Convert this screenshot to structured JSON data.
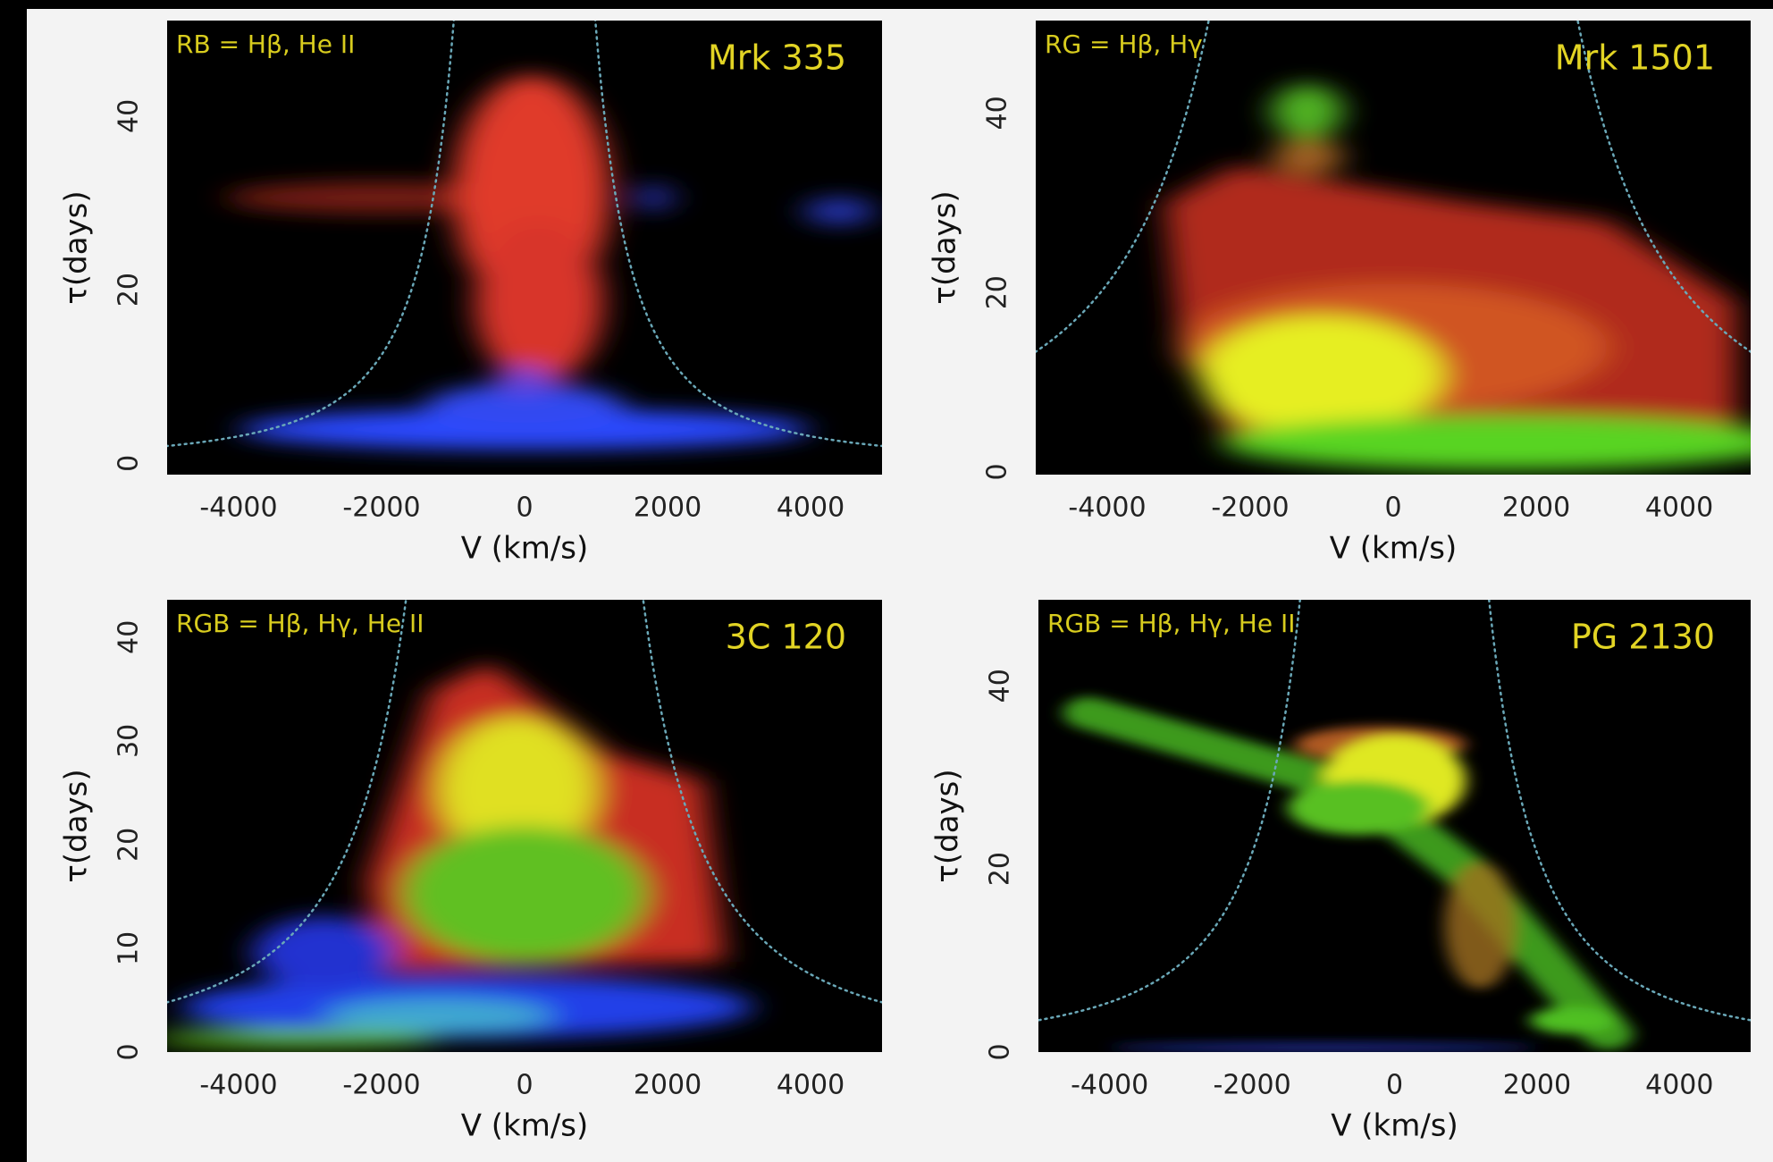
{
  "chart_data": [
    {
      "type": "image",
      "channels": "RB = Hβ, He II",
      "title": "Mrk 335",
      "xlabel": "V (km/s)",
      "ylabel": "τ(days)",
      "xlim": [
        -5000,
        5000
      ],
      "ylim": [
        -1.3,
        51
      ],
      "xticks": [
        -4000,
        -2000,
        0,
        2000,
        4000
      ],
      "yticks": [
        0,
        20,
        40
      ]
    },
    {
      "type": "image",
      "channels": "RG = Hβ, Hγ",
      "title": "Mrk 1501",
      "xlabel": "V (km/s)",
      "ylabel": "τ(days)",
      "xlim": [
        -5000,
        5000
      ],
      "ylim": [
        -0.3,
        50.3
      ],
      "xticks": [
        -4000,
        -2000,
        0,
        2000,
        4000
      ],
      "yticks": [
        0,
        20,
        40
      ]
    },
    {
      "type": "image",
      "channels": "RGB = Hβ, Hγ, He II",
      "title": "3C 120",
      "xlabel": "V (km/s)",
      "ylabel": "τ(days)",
      "xlim": [
        -5000,
        5000
      ],
      "ylim": [
        0,
        43.6
      ],
      "xticks": [
        -4000,
        -2000,
        0,
        2000,
        4000
      ],
      "yticks": [
        0,
        10,
        20,
        30,
        40
      ]
    },
    {
      "type": "image",
      "channels": "RGB = Hβ, Hγ, He II",
      "title": "PG 2130",
      "xlabel": "V (km/s)",
      "ylabel": "τ(days)",
      "xlim": [
        -5000,
        5000
      ],
      "ylim": [
        0,
        49.4
      ],
      "xticks": [
        -4000,
        -2000,
        0,
        2000,
        4000
      ],
      "yticks": [
        0,
        20,
        40
      ]
    }
  ]
}
